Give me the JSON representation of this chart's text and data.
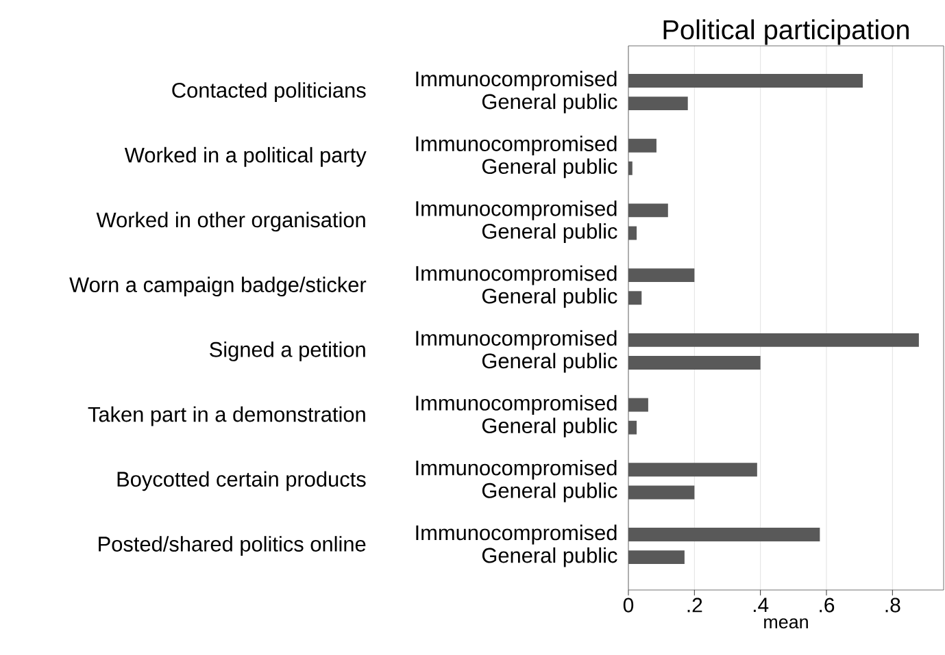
{
  "chart_data": {
    "type": "bar",
    "orientation": "horizontal",
    "title": "Political participation",
    "xlabel": "mean",
    "categories": [
      "Immunocompromised",
      "General public",
      "Immunocompromised",
      "General public",
      "Immunocompromised",
      "General public",
      "Immunocompromised",
      "General public",
      "Immunocompromised",
      "General public",
      "Immunocompromised",
      "General public",
      "Immunocompromised",
      "General public",
      "Immunocompromised",
      "General public"
    ],
    "values": [
      0.71,
      0.18,
      0.085,
      0.012,
      0.12,
      0.025,
      0.2,
      0.04,
      0.88,
      0.4,
      0.06,
      0.025,
      0.39,
      0.2,
      0.58,
      0.17
    ],
    "color": "#595959",
    "annotations": [
      "Contacted politicians",
      "Worked in a political party",
      "Worked in other organisation",
      "Worn a campaign badge/sticker",
      "Signed a petition",
      "Taken part in a demonstration",
      "Boycotted certain products",
      "Posted/shared politics online"
    ],
    "xlim": [
      0,
      0.955
    ],
    "xticks": [
      0,
      {
        "value": 0.2,
        "label": ".2"
      },
      {
        "value": 0.4,
        "label": ".4"
      },
      {
        "value": 0.6,
        "label": ".6"
      },
      {
        "value": 0.8,
        "label": ".8"
      }
    ],
    "grid": "x"
  }
}
